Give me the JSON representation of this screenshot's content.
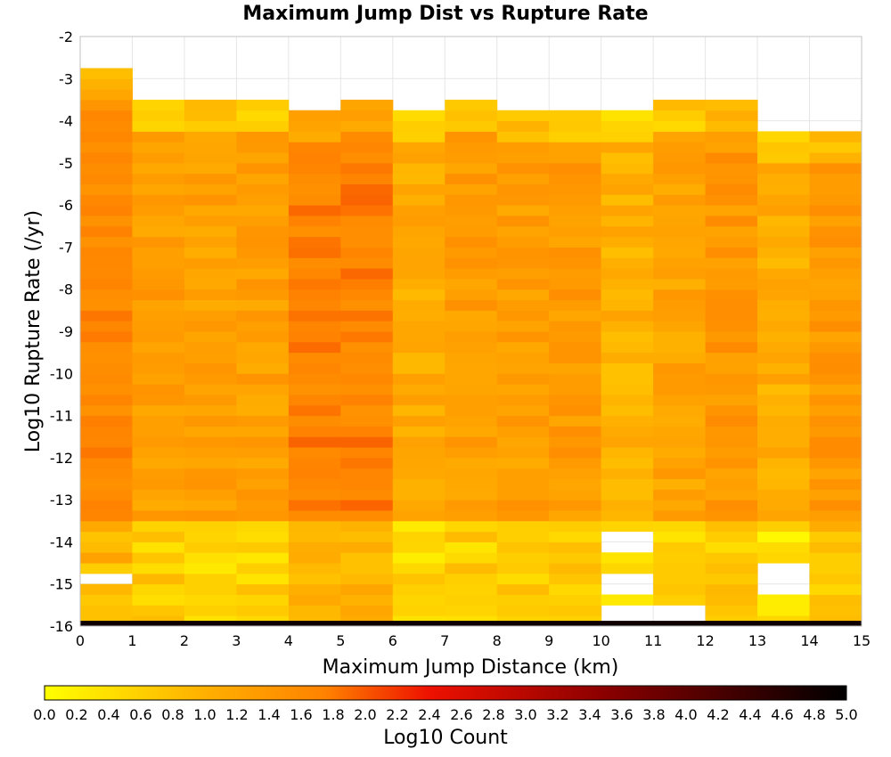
{
  "chart_data": {
    "type": "heatmap",
    "title": "Maximum Jump Dist vs Rupture Rate",
    "xlabel": "Maximum Jump Distance (km)",
    "ylabel": "Log10 Rupture Rate (/yr)",
    "colorbar_label": "Log10 Count",
    "xlim": [
      0,
      15
    ],
    "ylim": [
      -16,
      -2
    ],
    "x_ticks": [
      0,
      1,
      2,
      3,
      4,
      5,
      6,
      7,
      8,
      9,
      10,
      11,
      12,
      13,
      14,
      15
    ],
    "y_ticks": [
      -2,
      -3,
      -4,
      -5,
      -6,
      -7,
      -8,
      -9,
      -10,
      -11,
      -12,
      -13,
      -14,
      -15,
      -16
    ],
    "colorbar_range": [
      0.0,
      5.0
    ],
    "colorbar_ticks": [
      "0.0",
      "0.2",
      "0.4",
      "0.6",
      "0.8",
      "1.0",
      "1.2",
      "1.4",
      "1.6",
      "1.8",
      "2.0",
      "2.2",
      "2.4",
      "2.6",
      "2.8",
      "3.0",
      "3.2",
      "3.4",
      "3.6",
      "3.8",
      "4.0",
      "4.2",
      "4.4",
      "4.6",
      "4.8",
      "5.0"
    ],
    "colormap": "heat (yellow #ffff00 → orange #ff8c00 → red #ee1100 → dark red #880000 → black #000000)",
    "grid": true,
    "x_bin_width_km": 1,
    "y_bin_height_log10": 0.25,
    "column_top_y": [
      -2.75,
      -3.5,
      -3.5,
      -3.5,
      -3.75,
      -3.5,
      -3.75,
      -3.5,
      -3.75,
      -3.75,
      -3.75,
      -3.5,
      -3.5,
      -4.25,
      -4.25
    ],
    "column_mean_value": [
      1.5,
      1.2,
      1.15,
      1.15,
      1.6,
      1.6,
      1.0,
      1.2,
      1.2,
      1.25,
      0.9,
      1.1,
      1.3,
      0.95,
      1.3
    ],
    "empty_cells": [
      {
        "x": 0,
        "y_range": [
          -15.0,
          -14.75
        ]
      },
      {
        "x": 10,
        "y_range": [
          -14.25,
          -13.75
        ]
      },
      {
        "x": 10,
        "y_range": [
          -15.25,
          -14.75
        ]
      },
      {
        "x": 10,
        "y_range": [
          -16.0,
          -15.5
        ]
      },
      {
        "x": 11,
        "y_range": [
          -16.0,
          -15.5
        ]
      },
      {
        "x": 13,
        "y_range": [
          -15.25,
          -14.5
        ]
      }
    ],
    "bottom_row": {
      "y_range": [
        -16.0,
        -15.875
      ],
      "value": 4.85
    }
  },
  "colors": {
    "frame": "#c0c0c0",
    "grid": "#e6e6e6",
    "empty_cell": "#ffffff"
  }
}
